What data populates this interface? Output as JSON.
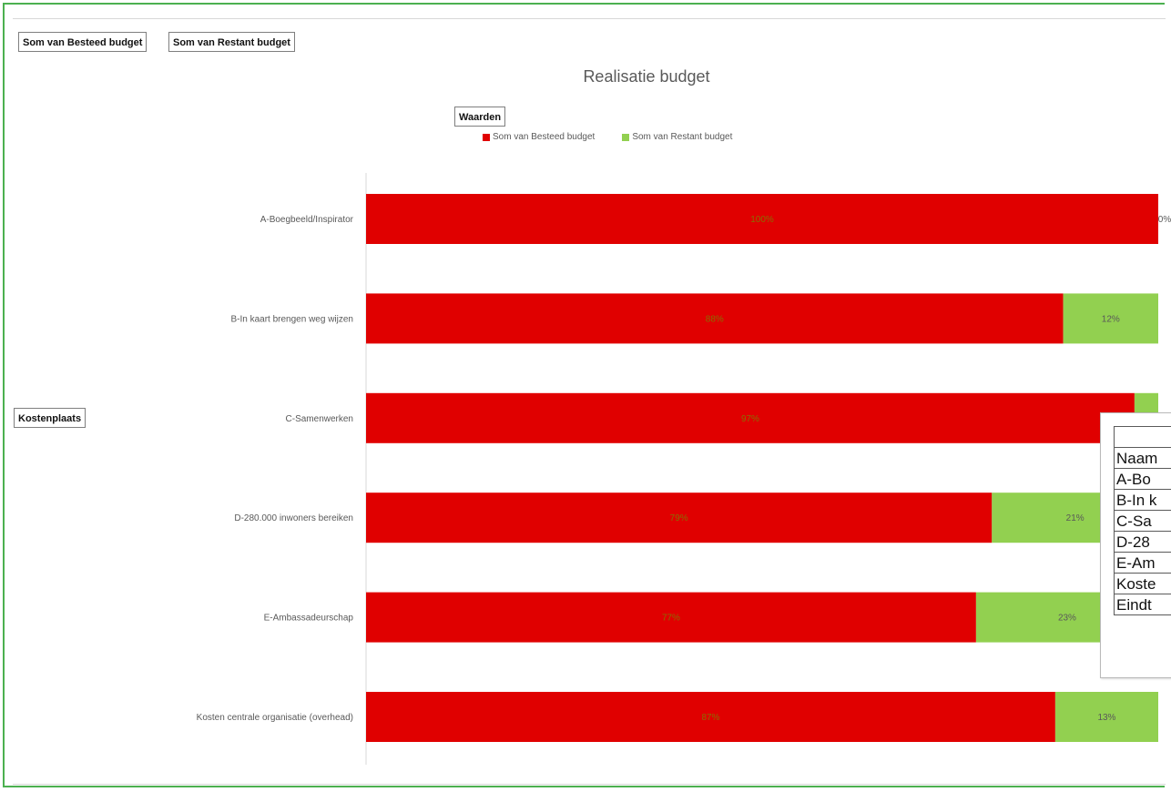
{
  "pivot": {
    "value_buttons": [
      "Som van Besteed budget",
      "Som van Restant budget"
    ],
    "values_button": "Waarden",
    "axis_button": "Kostenplaats"
  },
  "chart_data": {
    "type": "bar",
    "orientation": "horizontal",
    "stacked": "100%",
    "title": "Realisatie budget",
    "categories": [
      "A-Boegbeeld/Inspirator",
      "B-In kaart brengen weg wijzen",
      "C-Samenwerken",
      "D-280.000 inwoners bereiken",
      "E-Ambassadeurschap",
      "Kosten centrale organisatie (overhead)"
    ],
    "series": [
      {
        "name": "Som van Besteed budget",
        "color": "#e00000",
        "values": [
          100,
          88,
          97,
          79,
          77,
          87
        ],
        "labels": [
          "100%",
          "88%",
          "97%",
          "79%",
          "77%",
          "87%"
        ]
      },
      {
        "name": "Som van Restant budget",
        "color": "#92d050",
        "values": [
          0,
          12,
          3,
          21,
          23,
          13
        ],
        "labels": [
          "0%",
          "12%",
          "3%",
          "21%",
          "23%",
          "13%"
        ]
      }
    ],
    "xlim": [
      0,
      100
    ],
    "grid": false,
    "legend_position": "top"
  },
  "data_table": {
    "rows": [
      "Naam",
      "A-Bo",
      "B-In k",
      "C-Sa",
      "D-28",
      "E-Am",
      "Koste",
      "Eindt"
    ]
  }
}
